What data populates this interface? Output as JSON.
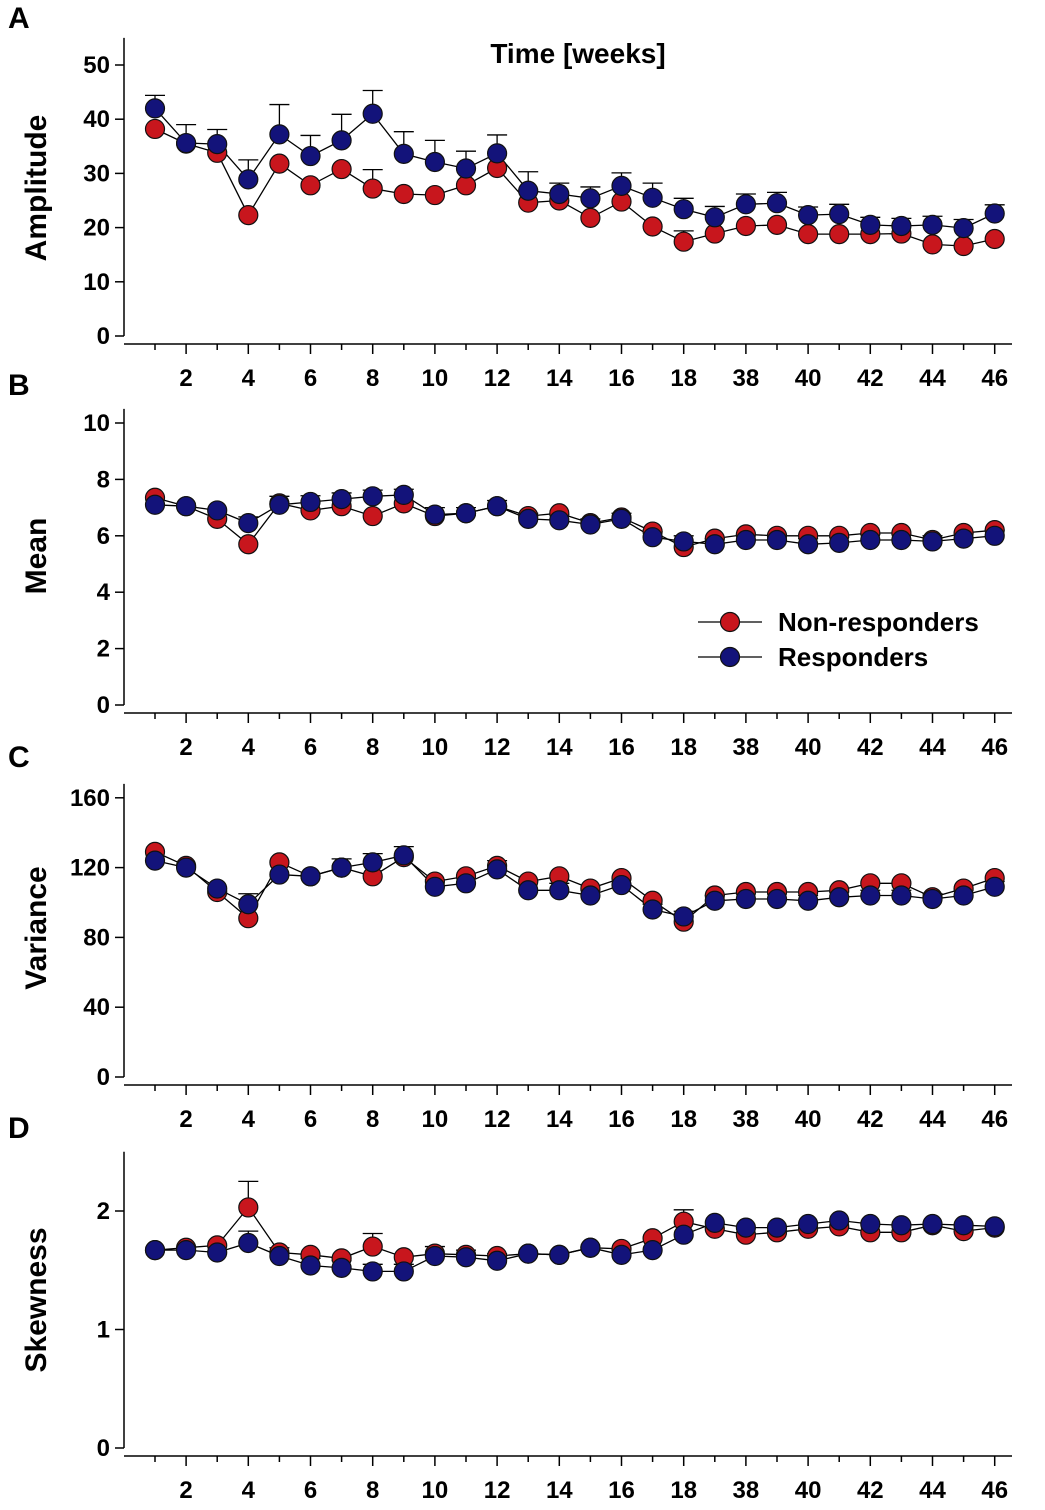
{
  "title": "Time [weeks]",
  "colors": {
    "non_responders": "#c8161d",
    "responders": "#13137a",
    "marker_edge": "#111111",
    "axis": "#000000"
  },
  "legend": [
    {
      "label": "Non-responders",
      "color": "#c8161d"
    },
    {
      "label": "Responders",
      "color": "#13137a"
    }
  ],
  "chart_data": [
    {
      "panel": "A",
      "type": "line",
      "title": "Time [weeks]",
      "ylabel": "Amplitude",
      "ylim": [
        0,
        55
      ],
      "yticks": [
        0,
        10,
        20,
        30,
        40,
        50
      ],
      "x_positions": [
        1,
        2,
        3,
        4,
        5,
        6,
        7,
        8,
        9,
        10,
        11,
        12,
        13,
        14,
        15,
        16,
        17,
        18,
        19,
        20,
        21,
        22,
        23,
        24,
        25,
        26,
        27,
        28
      ],
      "x_tick_labels": [
        "2",
        "4",
        "6",
        "8",
        "10",
        "12",
        "14",
        "16",
        "18",
        "38",
        "40",
        "42",
        "44",
        "46"
      ],
      "series": [
        {
          "name": "Non-responders",
          "values": [
            38.2,
            35.5,
            33.8,
            22.3,
            31.8,
            27.8,
            30.8,
            27.2,
            26.2,
            26.0,
            27.8,
            31.0,
            24.6,
            25.0,
            21.8,
            24.8,
            20.2,
            17.4,
            18.9,
            20.3,
            20.5,
            18.8,
            18.8,
            18.8,
            18.9,
            16.9,
            16.6,
            17.9
          ],
          "errors": [
            0,
            0,
            0,
            0,
            0,
            0,
            0,
            3.5,
            0,
            0,
            0,
            0,
            0,
            0,
            0,
            0,
            0,
            2.0,
            0,
            0,
            0,
            0,
            0,
            0,
            0,
            0,
            0,
            0
          ]
        },
        {
          "name": "Responders",
          "values": [
            42.0,
            35.6,
            35.4,
            28.9,
            37.2,
            33.2,
            36.1,
            41.0,
            33.6,
            32.1,
            30.9,
            33.7,
            26.8,
            26.2,
            25.4,
            27.7,
            25.5,
            23.4,
            21.9,
            24.3,
            24.5,
            22.3,
            22.5,
            20.5,
            20.3,
            20.5,
            19.9,
            22.6
          ],
          "errors": [
            2.4,
            3.4,
            2.7,
            3.6,
            5.5,
            3.8,
            4.8,
            4.3,
            4.1,
            4.0,
            3.2,
            3.4,
            3.5,
            2.0,
            2.1,
            2.4,
            2.7,
            2.0,
            2.0,
            1.9,
            2.0,
            1.5,
            1.8,
            1.4,
            1.4,
            1.6,
            1.6,
            1.6
          ]
        }
      ]
    },
    {
      "panel": "B",
      "type": "line",
      "ylabel": "Mean",
      "ylim": [
        0,
        10.5
      ],
      "yticks": [
        0,
        2,
        4,
        6,
        8,
        10
      ],
      "x_positions": [
        1,
        2,
        3,
        4,
        5,
        6,
        7,
        8,
        9,
        10,
        11,
        12,
        13,
        14,
        15,
        16,
        17,
        18,
        19,
        20,
        21,
        22,
        23,
        24,
        25,
        26,
        27,
        28
      ],
      "x_tick_labels": [
        "2",
        "4",
        "6",
        "8",
        "10",
        "12",
        "14",
        "16",
        "18",
        "38",
        "40",
        "42",
        "44",
        "46"
      ],
      "series": [
        {
          "name": "Non-responders",
          "values": [
            7.35,
            7.05,
            6.6,
            5.7,
            7.15,
            6.9,
            7.05,
            6.7,
            7.15,
            6.7,
            6.8,
            7.05,
            6.7,
            6.8,
            6.45,
            6.65,
            6.15,
            5.6,
            5.9,
            6.05,
            6.0,
            6.0,
            6.0,
            6.1,
            6.1,
            5.85,
            6.1,
            6.2
          ],
          "errors": [
            0,
            0,
            0,
            0,
            0,
            0,
            0,
            0,
            0,
            0,
            0,
            0,
            0,
            0,
            0,
            0,
            0,
            0,
            0,
            0,
            0,
            0,
            0,
            0,
            0,
            0,
            0,
            0
          ]
        },
        {
          "name": "Responders",
          "values": [
            7.1,
            7.05,
            6.9,
            6.45,
            7.1,
            7.2,
            7.3,
            7.4,
            7.45,
            6.75,
            6.8,
            7.05,
            6.6,
            6.55,
            6.4,
            6.6,
            5.95,
            5.8,
            5.7,
            5.85,
            5.85,
            5.7,
            5.75,
            5.85,
            5.85,
            5.8,
            5.9,
            6.0
          ],
          "errors": [
            0,
            0,
            0,
            0.22,
            0.3,
            0.22,
            0.22,
            0.22,
            0.2,
            0.25,
            0.2,
            0.2,
            0.2,
            0.2,
            0.2,
            0.2,
            0.2,
            0.2,
            0.2,
            0.2,
            0.2,
            0.2,
            0.2,
            0.2,
            0.2,
            0.2,
            0.2,
            0.2
          ]
        }
      ]
    },
    {
      "panel": "C",
      "type": "line",
      "ylabel": "Variance",
      "ylim": [
        0,
        168
      ],
      "yticks": [
        0,
        40,
        80,
        120,
        160
      ],
      "x_positions": [
        1,
        2,
        3,
        4,
        5,
        6,
        7,
        8,
        9,
        10,
        11,
        12,
        13,
        14,
        15,
        16,
        17,
        18,
        19,
        20,
        21,
        22,
        23,
        24,
        25,
        26,
        27,
        28
      ],
      "x_tick_labels": [
        "2",
        "4",
        "6",
        "8",
        "10",
        "12",
        "14",
        "16",
        "18",
        "38",
        "40",
        "42",
        "44",
        "46"
      ],
      "series": [
        {
          "name": "Non-responders",
          "values": [
            129,
            121,
            106,
            91,
            123,
            115,
            120,
            115,
            126,
            112,
            115,
            121,
            112,
            115,
            108,
            114,
            101,
            89,
            104,
            106,
            106,
            106,
            107,
            111,
            111,
            103,
            108,
            114
          ],
          "errors": [
            0,
            0,
            0,
            0,
            0,
            0,
            0,
            0,
            0,
            0,
            0,
            0,
            0,
            0,
            0,
            0,
            0,
            0,
            0,
            0,
            0,
            0,
            0,
            0,
            0,
            0,
            0,
            0
          ]
        },
        {
          "name": "Responders",
          "values": [
            124,
            120,
            108,
            99,
            116,
            115,
            120,
            123,
            127,
            109,
            111,
            119,
            107,
            107,
            104,
            110,
            96,
            92,
            101,
            102,
            102,
            101,
            103,
            104,
            104,
            102,
            104,
            109
          ],
          "errors": [
            0,
            0,
            0,
            6,
            0,
            0,
            5,
            5,
            5,
            4,
            4,
            5,
            5,
            4,
            3,
            4,
            3,
            3,
            3,
            3,
            3,
            3,
            3,
            3,
            3,
            3,
            3,
            3
          ]
        }
      ]
    },
    {
      "panel": "D",
      "type": "line",
      "ylabel": "Skewness",
      "ylim": [
        0,
        2.5
      ],
      "yticks": [
        0,
        1,
        2
      ],
      "x_positions": [
        1,
        2,
        3,
        4,
        5,
        6,
        7,
        8,
        9,
        10,
        11,
        12,
        13,
        14,
        15,
        16,
        17,
        18,
        19,
        20,
        21,
        22,
        23,
        24,
        25,
        26,
        27,
        28
      ],
      "x_tick_labels": [
        "2",
        "4",
        "6",
        "8",
        "10",
        "12",
        "14",
        "16",
        "18",
        "38",
        "40",
        "42",
        "44",
        "46"
      ],
      "series": [
        {
          "name": "Non-responders",
          "values": [
            1.67,
            1.69,
            1.71,
            2.03,
            1.65,
            1.63,
            1.6,
            1.7,
            1.61,
            1.64,
            1.63,
            1.62,
            1.64,
            1.63,
            1.69,
            1.68,
            1.77,
            1.91,
            1.85,
            1.8,
            1.82,
            1.85,
            1.87,
            1.82,
            1.82,
            1.88,
            1.83,
            1.86
          ],
          "errors": [
            0,
            0,
            0,
            0.22,
            0,
            0,
            0,
            0.11,
            0,
            0,
            0,
            0,
            0,
            0,
            0,
            0,
            0,
            0.1,
            0,
            0,
            0,
            0,
            0,
            0,
            0,
            0,
            0,
            0
          ]
        },
        {
          "name": "Responders",
          "values": [
            1.67,
            1.67,
            1.65,
            1.73,
            1.62,
            1.54,
            1.52,
            1.49,
            1.49,
            1.62,
            1.61,
            1.58,
            1.64,
            1.63,
            1.69,
            1.63,
            1.67,
            1.8,
            1.9,
            1.86,
            1.86,
            1.89,
            1.92,
            1.89,
            1.88,
            1.89,
            1.88,
            1.87
          ],
          "errors": [
            0,
            0,
            0,
            0.1,
            0.07,
            0.06,
            0.06,
            0.06,
            0.06,
            0.08,
            0.06,
            0.06,
            0,
            0,
            0,
            0,
            0,
            0,
            0,
            0,
            0,
            0,
            0,
            0,
            0,
            0,
            0,
            0
          ]
        }
      ]
    }
  ]
}
